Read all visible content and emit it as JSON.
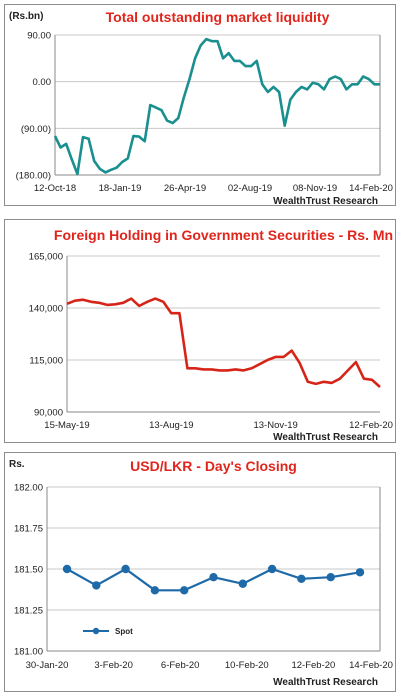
{
  "chart_data": [
    {
      "type": "line",
      "title": "Total outstanding market liquidity",
      "unit_label": "(Rs.bn)",
      "source": "WealthTrust Research",
      "y_ticks": [
        "90.00",
        "0.00",
        "(90.00)",
        "(180.00)"
      ],
      "y_tick_values": [
        90,
        0,
        -90,
        -180
      ],
      "ylim": [
        -180,
        90
      ],
      "x_tick_labels": [
        "12-Oct-18",
        "18-Jan-19",
        "26-Apr-19",
        "02-Aug-19",
        "08-Nov-19",
        "14-Feb-20"
      ],
      "grid": "horizontal",
      "colors": {
        "line": "#1a8f8f",
        "title": "#e0261c"
      },
      "series": [
        {
          "values": [
            -105,
            -127,
            -120,
            -150,
            -178,
            -107,
            -110,
            -153,
            -168,
            -175,
            -170,
            -166,
            -155,
            -148,
            -105,
            -106,
            -115,
            -45,
            -50,
            -55,
            -75,
            -80,
            -70,
            -30,
            5,
            45,
            70,
            82,
            78,
            78,
            45,
            55,
            40,
            40,
            30,
            30,
            40,
            -5,
            -20,
            -10,
            -20,
            -85,
            -35,
            -20,
            -10,
            -15,
            -2,
            -5,
            -15,
            5,
            10,
            5,
            -15,
            -5,
            -5,
            10,
            5,
            -5,
            -5
          ]
        }
      ]
    },
    {
      "type": "line",
      "title": "Foreign Holding in Government Securities - Rs. Mn",
      "source": "WealthTrust Research",
      "y_ticks": [
        "165,000",
        "140,000",
        "115,000",
        "90,000"
      ],
      "y_tick_values": [
        165000,
        140000,
        115000,
        90000
      ],
      "ylim": [
        90000,
        165000
      ],
      "x_tick_labels": [
        "15-May-19",
        "13-Aug-19",
        "13-Nov-19",
        "12-Feb-20"
      ],
      "grid": "horizontal",
      "colors": {
        "line": "#d62518",
        "title": "#e0261c"
      },
      "series": [
        {
          "values": [
            142000,
            143500,
            144000,
            143000,
            142500,
            141500,
            141800,
            142500,
            144500,
            141000,
            143000,
            144500,
            143000,
            137500,
            137500,
            111000,
            111000,
            110500,
            110500,
            110000,
            110000,
            110500,
            110000,
            111000,
            113000,
            115000,
            116500,
            116500,
            119500,
            113500,
            104500,
            103500,
            104500,
            104000,
            106000,
            110000,
            114000,
            106000,
            105500,
            102000
          ]
        }
      ]
    },
    {
      "type": "line",
      "title": "USD/LKR - Day's Closing",
      "unit_label": "Rs.",
      "source": "WealthTrust Research",
      "y_ticks": [
        "182.00",
        "181.75",
        "181.50",
        "181.25",
        "181.00"
      ],
      "y_tick_values": [
        182.0,
        181.75,
        181.5,
        181.25,
        181.0
      ],
      "ylim": [
        181.0,
        182.0
      ],
      "x_tick_labels": [
        "30-Jan-20",
        "3-Feb-20",
        "6-Feb-20",
        "10-Feb-20",
        "12-Feb-20",
        "14-Feb-20"
      ],
      "grid": "horizontal",
      "legend": "bottom-left",
      "colors": {
        "line": "#1e6aa8",
        "marker": "#1e6aa8",
        "title": "#e0261c"
      },
      "series": [
        {
          "name": "Spot",
          "values": [
            181.5,
            181.4,
            181.5,
            181.37,
            181.37,
            181.45,
            181.41,
            181.5,
            181.44,
            181.45,
            181.48
          ]
        }
      ]
    }
  ]
}
